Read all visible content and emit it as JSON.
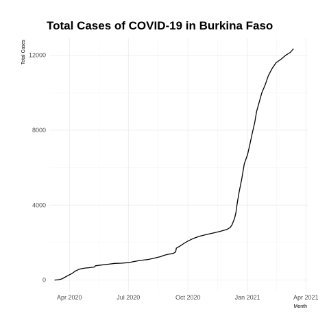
{
  "chart_data": {
    "type": "line",
    "title": "Total Cases of COVID-19 in Burkina Faso",
    "xlabel": "Month",
    "ylabel": "Total Cases",
    "x_ticks": [
      "Apr 2020",
      "Jul 2020",
      "Oct 2020",
      "Jan 2021",
      "Apr 2021"
    ],
    "y_ticks": [
      "0",
      "4000",
      "8000",
      "12000"
    ],
    "xlim": [
      "2020-03-01",
      "2021-04-05"
    ],
    "ylim": [
      -600,
      12900
    ],
    "grid": true,
    "series": [
      {
        "color": "#000000",
        "points": [
          [
            "2020-03-09",
            0
          ],
          [
            "2020-03-15",
            20
          ],
          [
            "2020-03-20",
            60
          ],
          [
            "2020-03-25",
            150
          ],
          [
            "2020-03-30",
            250
          ],
          [
            "2020-04-05",
            350
          ],
          [
            "2020-04-10",
            480
          ],
          [
            "2020-04-15",
            560
          ],
          [
            "2020-04-20",
            610
          ],
          [
            "2020-04-25",
            640
          ],
          [
            "2020-05-01",
            660
          ],
          [
            "2020-05-10",
            700
          ],
          [
            "2020-05-11",
            760
          ],
          [
            "2020-05-20",
            800
          ],
          [
            "2020-06-01",
            850
          ],
          [
            "2020-06-10",
            890
          ],
          [
            "2020-06-20",
            900
          ],
          [
            "2020-07-01",
            930
          ],
          [
            "2020-07-10",
            990
          ],
          [
            "2020-07-20",
            1050
          ],
          [
            "2020-08-01",
            1100
          ],
          [
            "2020-08-10",
            1170
          ],
          [
            "2020-08-20",
            1250
          ],
          [
            "2020-08-25",
            1320
          ],
          [
            "2020-09-01",
            1380
          ],
          [
            "2020-09-08",
            1420
          ],
          [
            "2020-09-12",
            1500
          ],
          [
            "2020-09-13",
            1700
          ],
          [
            "2020-09-18",
            1800
          ],
          [
            "2020-09-25",
            1960
          ],
          [
            "2020-10-01",
            2080
          ],
          [
            "2020-10-10",
            2230
          ],
          [
            "2020-10-20",
            2350
          ],
          [
            "2020-11-01",
            2450
          ],
          [
            "2020-11-10",
            2520
          ],
          [
            "2020-11-20",
            2600
          ],
          [
            "2020-11-30",
            2700
          ],
          [
            "2020-12-05",
            2800
          ],
          [
            "2020-12-08",
            2950
          ],
          [
            "2020-12-12",
            3300
          ],
          [
            "2020-12-14",
            3600
          ],
          [
            "2020-12-16",
            4100
          ],
          [
            "2020-12-19",
            4700
          ],
          [
            "2020-12-23",
            5400
          ],
          [
            "2020-12-27",
            6200
          ],
          [
            "2021-01-01",
            6700
          ],
          [
            "2021-01-05",
            7300
          ],
          [
            "2021-01-08",
            7800
          ],
          [
            "2021-01-12",
            8400
          ],
          [
            "2021-01-15",
            9000
          ],
          [
            "2021-01-19",
            9500
          ],
          [
            "2021-01-23",
            10000
          ],
          [
            "2021-01-28",
            10400
          ],
          [
            "2021-02-02",
            10900
          ],
          [
            "2021-02-08",
            11300
          ],
          [
            "2021-02-14",
            11600
          ],
          [
            "2021-02-22",
            11800
          ],
          [
            "2021-03-01",
            12000
          ],
          [
            "2021-03-08",
            12150
          ],
          [
            "2021-03-13",
            12350
          ]
        ]
      }
    ]
  }
}
